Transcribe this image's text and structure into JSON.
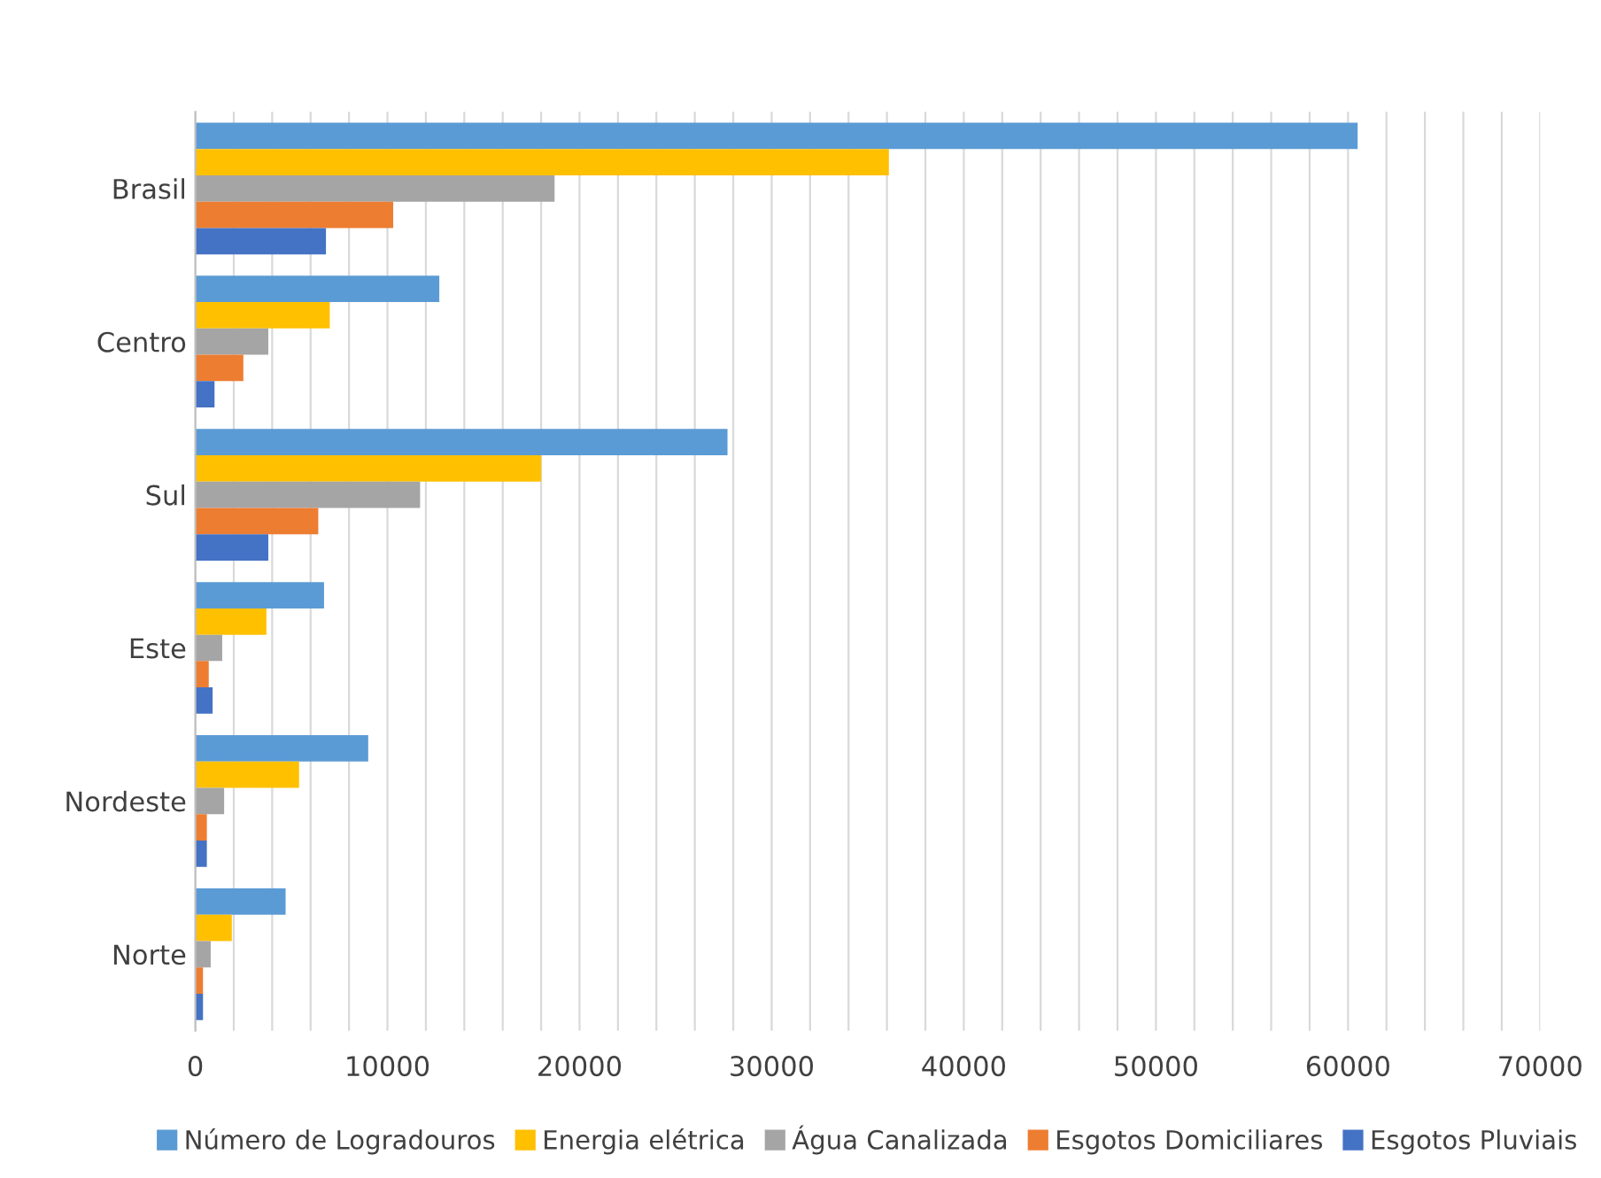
{
  "chart_data": {
    "type": "bar",
    "orientation": "horizontal",
    "categories": [
      "Brasil",
      "Centro",
      "Sul",
      "Este",
      "Nordeste",
      "Norte"
    ],
    "series": [
      {
        "name": "Número de Logradouros",
        "color": "#5b9bd5",
        "values": [
          60500,
          12700,
          27700,
          6700,
          9000,
          4700
        ]
      },
      {
        "name": "Energia elétrica",
        "color": "#ffc000",
        "values": [
          36100,
          7000,
          18000,
          3700,
          5400,
          1900
        ]
      },
      {
        "name": "Água Canalizada",
        "color": "#a5a5a5",
        "values": [
          18700,
          3800,
          11700,
          1400,
          1500,
          800
        ]
      },
      {
        "name": "Esgotos Domiciliares",
        "color": "#ed7d31",
        "values": [
          10300,
          2500,
          6400,
          700,
          600,
          400
        ]
      },
      {
        "name": "Esgotos Pluviais",
        "color": "#4472c4",
        "values": [
          6800,
          1000,
          3800,
          900,
          600,
          400
        ]
      }
    ],
    "xlim": [
      0,
      70000
    ],
    "xticks": [
      0,
      {
        "value": 2000,
        "label": null
      },
      {
        "value": 4000,
        "label": null
      },
      {
        "value": 6000,
        "label": null
      },
      {
        "value": 8000,
        "label": null
      },
      10000,
      {
        "value": 12000,
        "label": null
      },
      {
        "value": 14000,
        "label": null
      },
      {
        "value": 16000,
        "label": null
      },
      {
        "value": 18000,
        "label": null
      },
      20000,
      {
        "value": 22000,
        "label": null
      },
      {
        "value": 24000,
        "label": null
      },
      {
        "value": 26000,
        "label": null
      },
      {
        "value": 28000,
        "label": null
      },
      30000,
      {
        "value": 32000,
        "label": null
      },
      {
        "value": 34000,
        "label": null
      },
      {
        "value": 36000,
        "label": null
      },
      {
        "value": 38000,
        "label": null
      },
      40000,
      {
        "value": 42000,
        "label": null
      },
      {
        "value": 44000,
        "label": null
      },
      {
        "value": 46000,
        "label": null
      },
      {
        "value": 48000,
        "label": null
      },
      50000,
      {
        "value": 52000,
        "label": null
      },
      {
        "value": 54000,
        "label": null
      },
      {
        "value": 56000,
        "label": null
      },
      {
        "value": 58000,
        "label": null
      },
      60000,
      {
        "value": 62000,
        "label": null
      },
      {
        "value": 64000,
        "label": null
      },
      {
        "value": 66000,
        "label": null
      },
      {
        "value": 68000,
        "label": null
      },
      70000
    ],
    "grid": "x",
    "legend": "bottom"
  }
}
